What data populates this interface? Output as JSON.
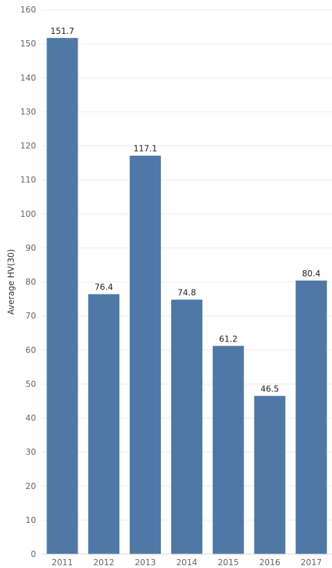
{
  "chart_data": {
    "type": "bar",
    "categories": [
      "2011",
      "2012",
      "2013",
      "2014",
      "2015",
      "2016",
      "2017"
    ],
    "values": [
      151.7,
      76.4,
      117.1,
      74.8,
      61.2,
      46.5,
      80.4
    ],
    "data_labels": [
      "151.7",
      "76.4",
      "117.1",
      "74.8",
      "61.2",
      "46.5",
      "80.4"
    ],
    "title": "",
    "xlabel": "",
    "ylabel": "Average HV(30)",
    "ylim": [
      0,
      160
    ],
    "yticks": [
      0,
      10,
      20,
      30,
      40,
      50,
      60,
      70,
      80,
      90,
      100,
      110,
      120,
      130,
      140,
      150,
      160
    ],
    "grid": true,
    "legend": "none",
    "colors": {
      "bar": "#4e79a7",
      "grid": "#ececec",
      "axis": "#d9d9d9"
    }
  }
}
